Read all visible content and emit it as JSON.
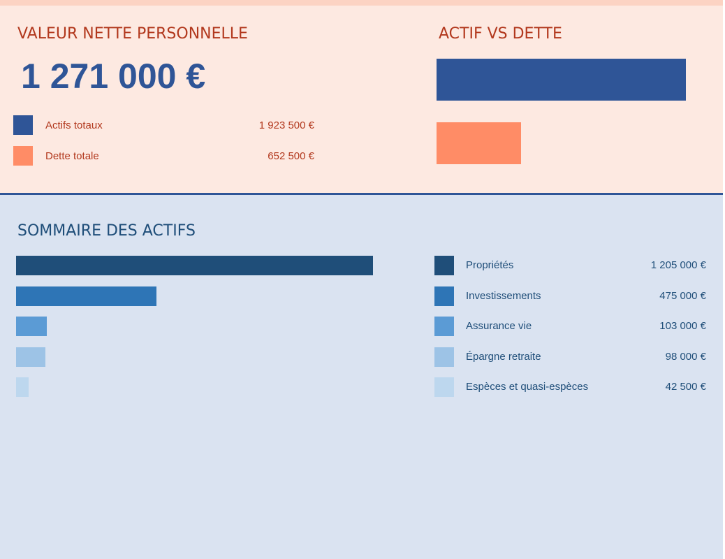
{
  "net_worth": {
    "title": "VALEUR NETTE PERSONNELLE",
    "value": "1 271 000 €",
    "items": [
      {
        "label": "Actifs totaux",
        "value": "1 923 500 €",
        "color": "#2f5597"
      },
      {
        "label": "Dette totale",
        "value": "652 500 €",
        "color": "#ff8c66"
      }
    ]
  },
  "chart_data": [
    {
      "type": "bar",
      "title": "ACTIF VS DETTE",
      "orientation": "horizontal",
      "categories": [
        "Actifs totaux",
        "Dette totale"
      ],
      "values": [
        1923500,
        652500
      ],
      "colors": [
        "#2f5597",
        "#ff8c66"
      ],
      "grid": false
    },
    {
      "type": "bar",
      "title": "SOMMAIRE DES ACTIFS",
      "orientation": "horizontal",
      "categories": [
        "Propriétés",
        "Investissements",
        "Assurance vie",
        "Épargne retraite",
        "Espèces et quasi-espèces"
      ],
      "values": [
        1205000,
        475000,
        103000,
        98000,
        42500
      ],
      "value_labels": [
        "1 205 000 €",
        "475 000 €",
        "103 000 €",
        "98 000 €",
        "42 500 €"
      ],
      "colors": [
        "#1f4e79",
        "#2e75b6",
        "#5b9bd5",
        "#9dc3e6",
        "#bdd7ee"
      ],
      "legend": "right",
      "grid": false
    }
  ]
}
